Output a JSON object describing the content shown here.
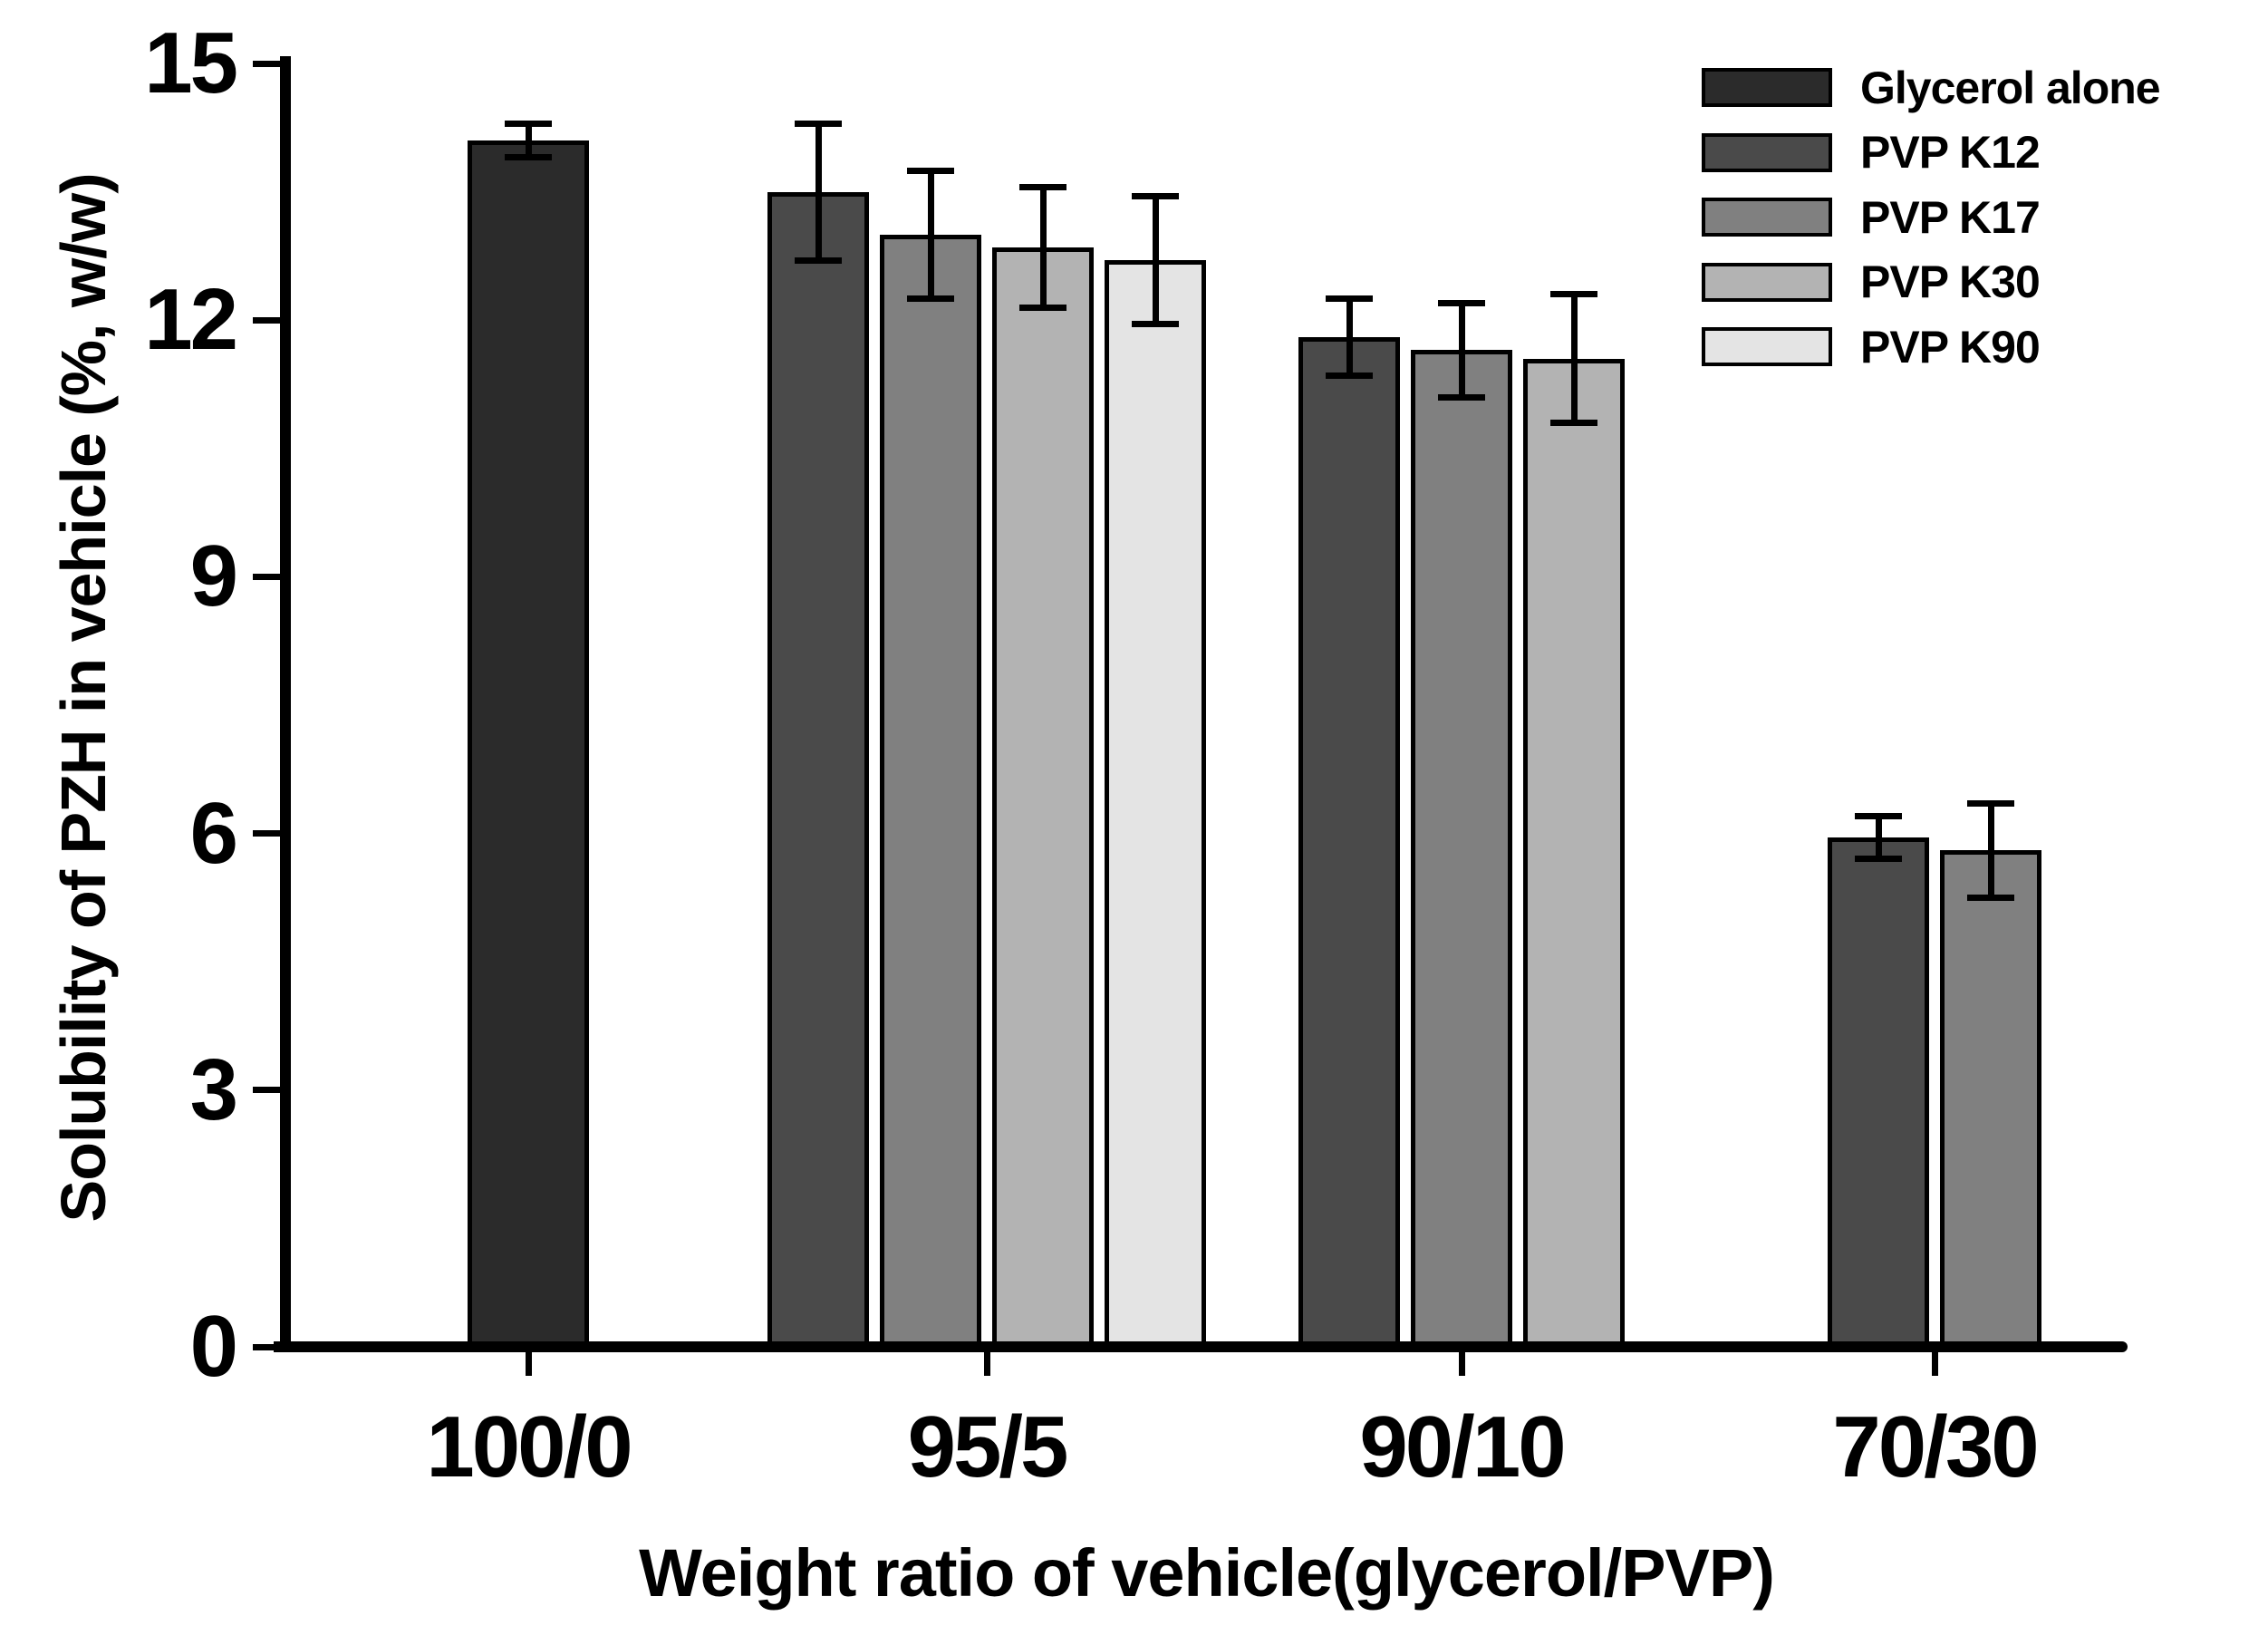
{
  "chart_data": {
    "type": "bar",
    "title": "",
    "xlabel": "Weight ratio of vehicle(glycerol/PVP)",
    "ylabel": "Solubility of PZH in vehicle (%, w/w)",
    "categories": [
      "100/0",
      "95/5",
      "90/10",
      "70/30"
    ],
    "y_axis": {
      "min": 0,
      "max": 15,
      "ticks": [
        0,
        3,
        6,
        9,
        12,
        15
      ]
    },
    "grid": false,
    "legend_position": "top-right",
    "series": [
      {
        "name": "Glycerol alone",
        "color": "#2b2b2b",
        "data": [
          {
            "value": 14.1,
            "error": 0.2
          },
          null,
          null,
          null
        ]
      },
      {
        "name": "PVP K12",
        "color": "#4a4a4a",
        "data": [
          null,
          {
            "value": 13.5,
            "error": 0.8
          },
          {
            "value": 11.8,
            "error": 0.45
          },
          {
            "value": 5.95,
            "error": 0.25
          }
        ]
      },
      {
        "name": "PVP K17",
        "color": "#808080",
        "data": [
          null,
          {
            "value": 13.0,
            "error": 0.75
          },
          {
            "value": 11.65,
            "error": 0.55
          },
          {
            "value": 5.8,
            "error": 0.55
          }
        ]
      },
      {
        "name": "PVP K30",
        "color": "#b3b3b3",
        "data": [
          null,
          {
            "value": 12.85,
            "error": 0.7
          },
          {
            "value": 11.55,
            "error": 0.75
          },
          null
        ]
      },
      {
        "name": "PVP K90",
        "color": "#e4e4e4",
        "data": [
          null,
          {
            "value": 12.7,
            "error": 0.75
          },
          null,
          null
        ]
      }
    ],
    "bar_border_color": "#000000",
    "error_bar_color": "#000000",
    "axis_color": "#000000",
    "text_color": "#000000",
    "background_color": "#ffffff"
  }
}
